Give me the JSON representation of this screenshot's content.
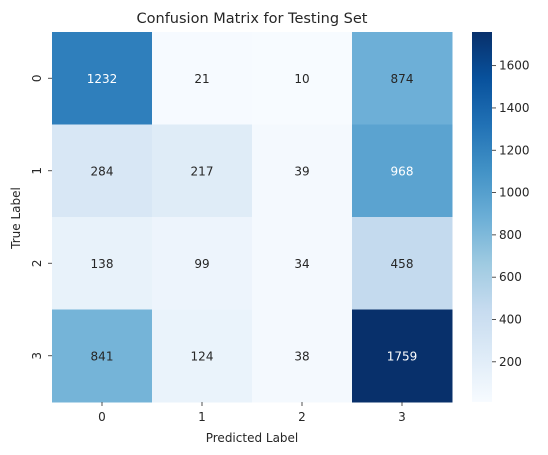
{
  "chart_data": {
    "type": "heatmap",
    "title": "Confusion Matrix for Testing Set",
    "xlabel": "Predicted Label",
    "ylabel": "True Label",
    "x_categories": [
      "0",
      "1",
      "2",
      "3"
    ],
    "y_categories": [
      "0",
      "1",
      "2",
      "3"
    ],
    "values": [
      [
        1232,
        21,
        10,
        874
      ],
      [
        284,
        217,
        39,
        968
      ],
      [
        138,
        99,
        34,
        458
      ],
      [
        841,
        124,
        38,
        1759
      ]
    ],
    "colorscale": "Blues",
    "color_range": [
      10,
      1759
    ],
    "colorbar_ticks": [
      "200",
      "400",
      "600",
      "800",
      "1000",
      "1200",
      "1400",
      "1600"
    ]
  }
}
